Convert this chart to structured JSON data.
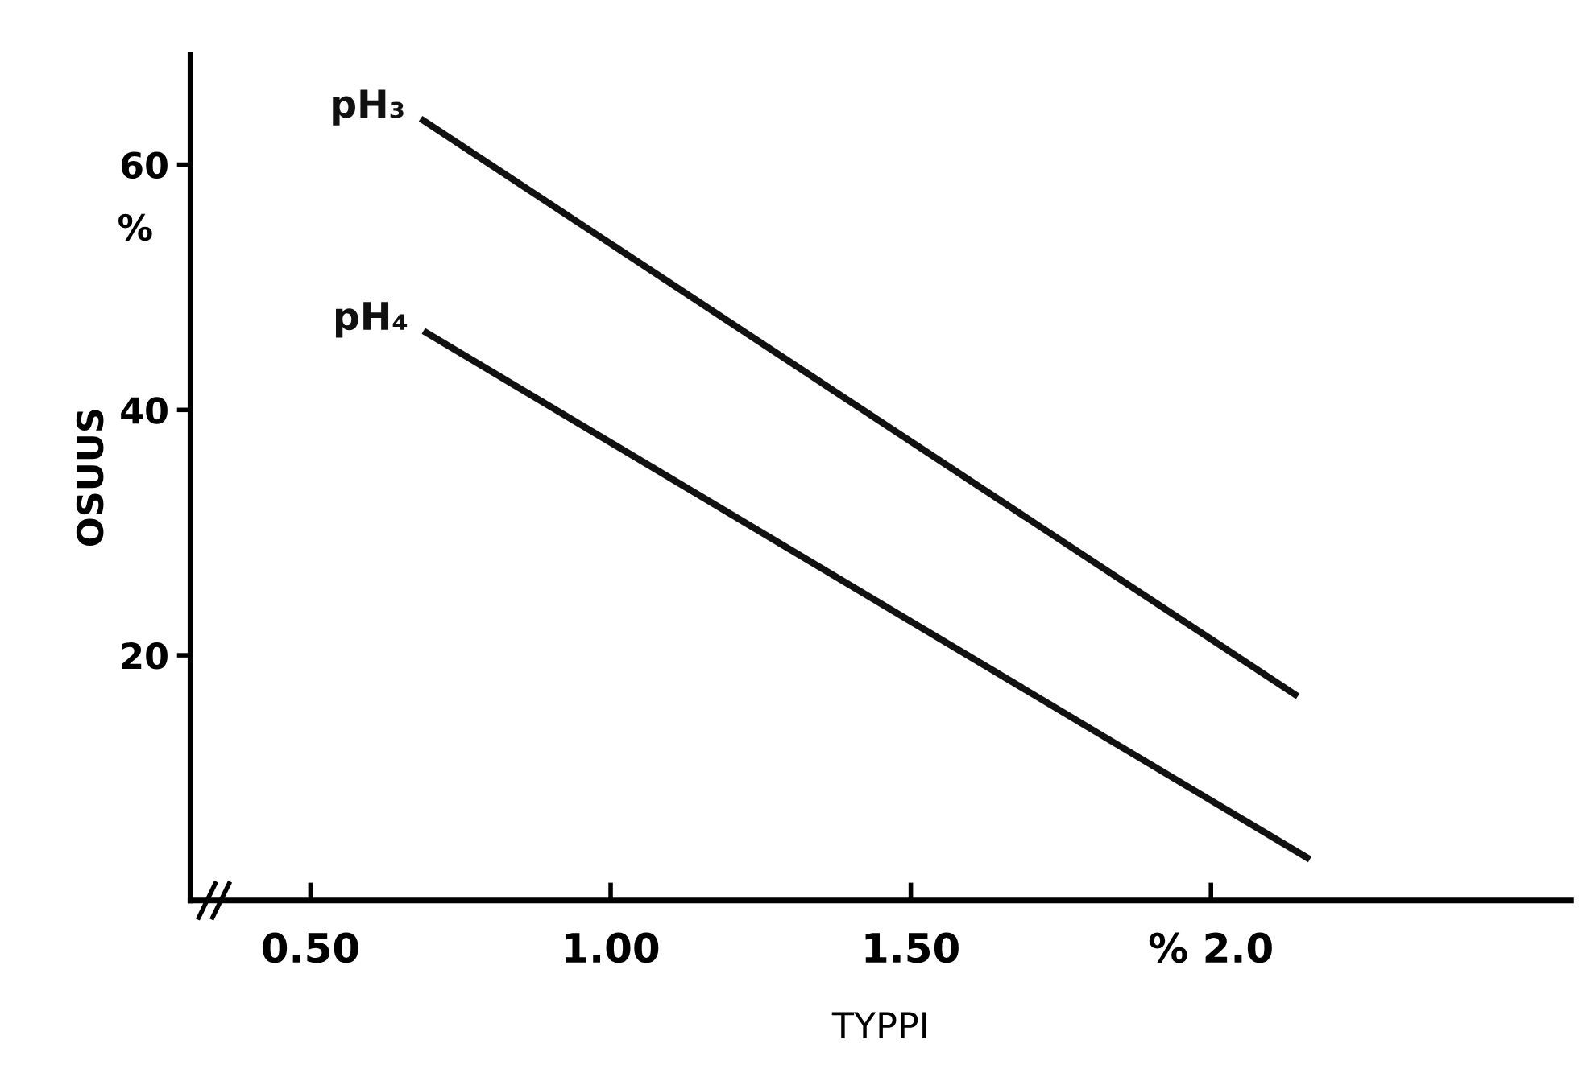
{
  "chart_data": {
    "type": "line",
    "xlabel": "TYPPI",
    "ylabel": "OSUUS",
    "annotations": [
      "%"
    ],
    "series": [
      {
        "name": "pH₃",
        "color": "#111111",
        "x": [
          0.688,
          2.14
        ],
        "values": [
          63.6,
          16.8
        ]
      },
      {
        "name": "pH₄",
        "color": "#111111",
        "x": [
          0.693,
          2.16
        ],
        "values": [
          46.3,
          3.5
        ]
      }
    ],
    "xlim": [
      0.3,
      2.6
    ],
    "ylim": [
      0,
      69
    ],
    "xticks": [
      {
        "value": 0.5,
        "label": "0.50"
      },
      {
        "value": 1.0,
        "label": "1.00"
      },
      {
        "value": 1.5,
        "label": "1.50"
      },
      {
        "value": 2.0,
        "label": "% 2.0"
      }
    ],
    "yticks": [
      20,
      40,
      60
    ],
    "grid": false,
    "legend": false,
    "marker": "none",
    "line_style": "solid"
  }
}
